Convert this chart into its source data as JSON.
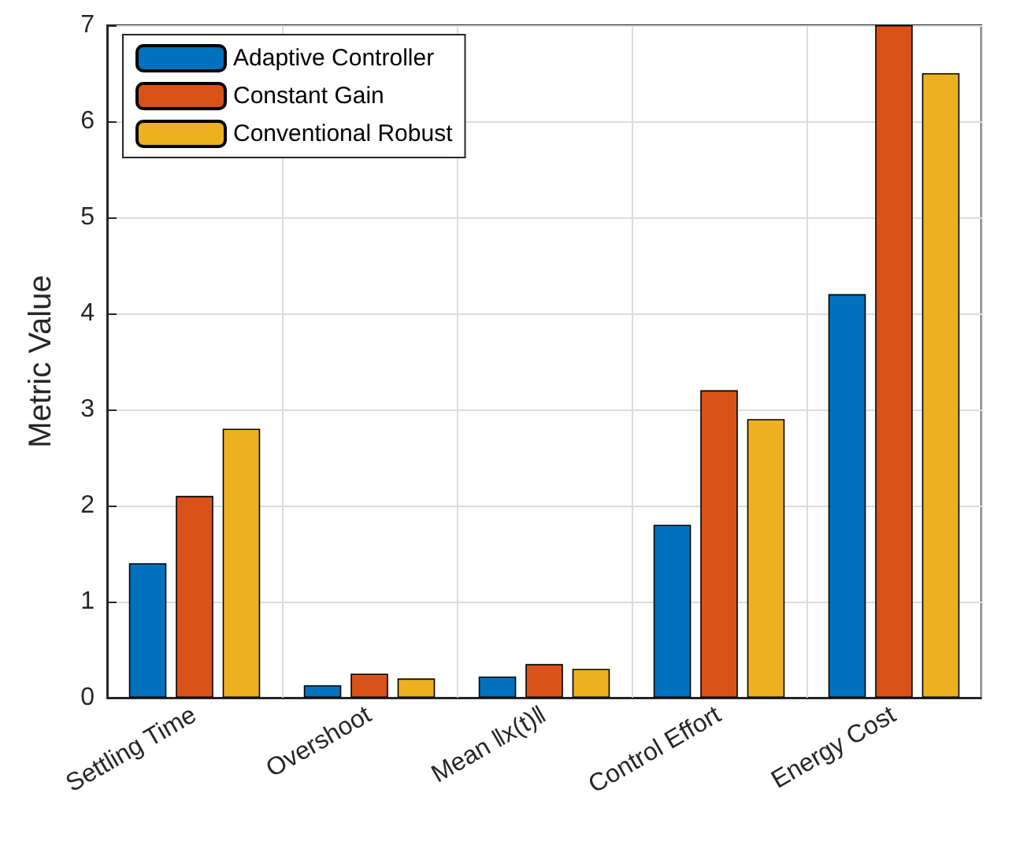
{
  "chart_data": {
    "type": "bar",
    "ylabel": "Metric Value",
    "categories": [
      "Settling Time",
      "Overshoot",
      "Mean ‖x(t)‖",
      "Control Effort",
      "Energy Cost"
    ],
    "series": [
      {
        "name": "Adaptive Controller",
        "color": "#0072bd",
        "values": [
          1.4,
          0.13,
          0.22,
          1.8,
          4.2
        ]
      },
      {
        "name": "Constant Gain",
        "color": "#d95319",
        "values": [
          2.1,
          0.25,
          0.35,
          3.2,
          7
        ]
      },
      {
        "name": "Conventional Robust",
        "color": "#edb120",
        "values": [
          2.8,
          0.2,
          0.3,
          2.9,
          6.5
        ]
      }
    ],
    "ylim": [
      0,
      7
    ],
    "yticks": [
      0,
      1,
      2,
      3,
      4,
      5,
      6,
      7
    ],
    "grid": true,
    "legend": "top left"
  }
}
